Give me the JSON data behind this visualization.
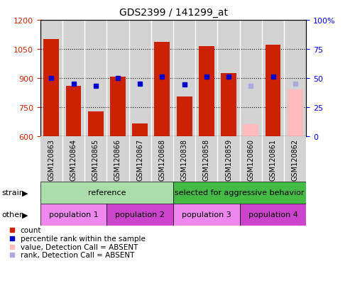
{
  "title": "GDS2399 / 141299_at",
  "samples": [
    "GSM120863",
    "GSM120864",
    "GSM120865",
    "GSM120866",
    "GSM120867",
    "GSM120868",
    "GSM120838",
    "GSM120858",
    "GSM120859",
    "GSM120860",
    "GSM120861",
    "GSM120862"
  ],
  "bar_values": [
    1100,
    860,
    725,
    905,
    665,
    1085,
    805,
    1065,
    925,
    null,
    1070,
    null
  ],
  "bar_values_absent": [
    null,
    null,
    null,
    null,
    null,
    null,
    null,
    null,
    null,
    660,
    null,
    840
  ],
  "rank_values_present": [
    900,
    870,
    860,
    900,
    870,
    905,
    865,
    905,
    905,
    null,
    905,
    null
  ],
  "rank_values_absent": [
    null,
    null,
    null,
    null,
    null,
    null,
    null,
    null,
    null,
    860,
    null,
    870
  ],
  "ylim_left": [
    600,
    1200
  ],
  "ylim_right": [
    0,
    100
  ],
  "yticks_left": [
    600,
    750,
    900,
    1050,
    1200
  ],
  "yticks_right": [
    0,
    25,
    50,
    75,
    100
  ],
  "gray_bg": "#d3d3d3",
  "red_bar": "#cc2200",
  "pink_bar": "#ffbbbb",
  "blue_square": "#0000cc",
  "blue_light_square": "#aaaadd",
  "light_green": "#aaddaa",
  "bright_green": "#44bb44",
  "magenta_light": "#ee88ee",
  "magenta_bright": "#cc44cc",
  "figsize": [
    4.93,
    4.14
  ],
  "dpi": 100
}
